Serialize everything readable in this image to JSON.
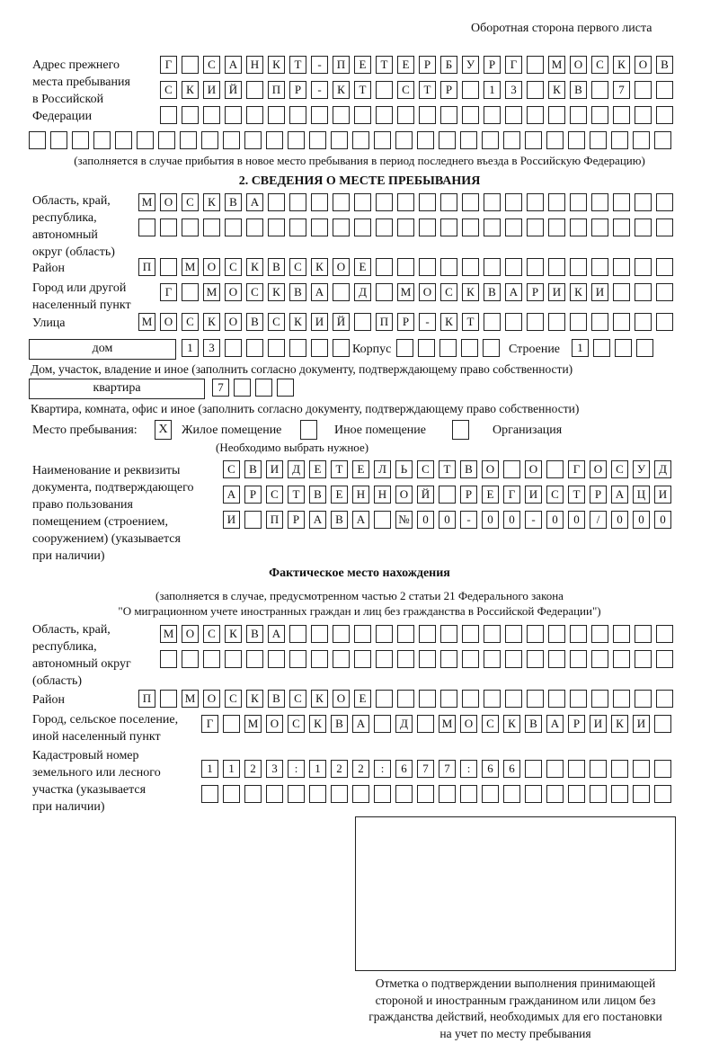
{
  "header": "Оборотная сторона первого листа",
  "previous_address": {
    "label": [
      "Адрес прежнего",
      "места пребывания",
      "в Российской",
      "Федерации"
    ],
    "rows": [
      "Г САНКТ-ПЕТЕРБУРГ МОСКОВ",
      "СКИЙ ПР-КТ СТР 13 КВ 7  ",
      "                        ",
      "                              "
    ],
    "note": "(заполняется в случае прибытия в новое место пребывания в период последнего въезда в Российскую Федерацию)"
  },
  "section2": {
    "title": "2. СВЕДЕНИЯ О МЕСТЕ ПРЕБЫВАНИЯ",
    "region_label": [
      "Область, край,",
      "республика,",
      "автономный",
      "округ (область)"
    ],
    "region_rows": [
      "МОСКВА                   ",
      "                         "
    ],
    "district_label": "Район",
    "district": "П МОСКВСКОЕ              ",
    "city_label": [
      "Город или другой",
      "населенный пункт"
    ],
    "city": "Г МОСКВА Д МОСКВАРИКИ   ",
    "street_label": "Улица",
    "street": "МОСКОВСКИЙ ПР-КТ         ",
    "house_type": "дом",
    "house": "13      ",
    "korpus_label": "Корпус",
    "korpus": "     ",
    "building_label": "Строение",
    "building": "1   ",
    "house_note": "Дом, участок, владение и иное (заполнить согласно документу, подтверждающему право собственности)",
    "apt_type": "квартира",
    "apt": "7   ",
    "apt_note": "Квартира, комната, офис и иное (заполнить согласно документу, подтверждающему право собственности)",
    "place_label": "Место пребывания:",
    "place_options": [
      {
        "label": "Жилое помещение",
        "checked": true,
        "mark": "X"
      },
      {
        "label": "Иное помещение",
        "checked": false,
        "mark": ""
      },
      {
        "label": "Организация",
        "checked": false,
        "mark": ""
      }
    ],
    "place_note": "(Необходимо выбрать нужное)",
    "doc_label": [
      "Наименование и реквизиты",
      "документа, подтверждающего",
      "право пользования",
      "помещением (строением,",
      "сооружением) (указывается",
      "при наличии)"
    ],
    "doc_rows": [
      "СВИДЕТЕЛЬСТВО О ГОСУД",
      "АРСТВЕННОЙ РЕГИСТРАЦИ",
      "И ПРАВА №00-00-00/000"
    ]
  },
  "actual": {
    "title": "Фактическое место нахождения",
    "note": [
      "(заполняется в случае, предусмотренном частью 2 статьи 21 Федерального закона",
      "\"О миграционном учете иностранных граждан и лиц без гражданства в Российской Федерации\")"
    ],
    "region_label": [
      "Область, край,",
      "республика,",
      "автономный округ",
      "(область)"
    ],
    "region_rows": [
      "МОСКВА                  ",
      "                        "
    ],
    "district_label": "Район",
    "district": "П МОСКВСКОЕ              ",
    "city_label": [
      "Город, сельское поселение,",
      "иной населенный пункт"
    ],
    "city": "Г МОСКВА Д МОСКВАРИКИ ",
    "cadastral_label": [
      "Кадастровый номер",
      "земельного или лесного",
      "участка (указывается",
      "при наличии)"
    ],
    "cadastral_rows": [
      "1123:122:677:66       ",
      "                      "
    ]
  },
  "stamp_caption": [
    "Отметка о подтверждении выполнения принимающей",
    "стороной и иностранным гражданином или лицом без",
    "гражданства действий, необходимых для его постановки",
    "на учет по месту пребывания"
  ]
}
